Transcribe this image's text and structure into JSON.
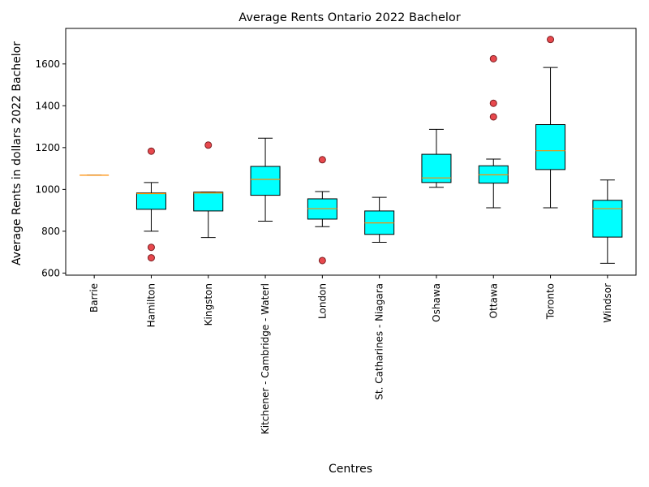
{
  "chart_data": {
    "type": "box",
    "title": "Average Rents Ontario  2022 Bachelor",
    "xlabel": "Centres",
    "ylabel": "Average Rents in dollars 2022 Bachelor",
    "ylim": [
      590,
      1770
    ],
    "yticks": [
      600,
      800,
      1000,
      1200,
      1400,
      1600
    ],
    "grid": false,
    "colors": {
      "box_fill": "#00ffff",
      "median": "#ff8c00",
      "outlier_fill": "#e8484d",
      "outlier_edge": "#7a1f22"
    },
    "categories": [
      "Barrie",
      "Hamilton",
      "Kingston",
      "Kitchener - Cambridge - Waterl",
      "London",
      "St. Catharines - Niagara",
      "Oshawa",
      "Ottawa",
      "Toronto",
      "Windsor"
    ],
    "boxes": [
      {
        "category": "Barrie",
        "whisker_low": 1068,
        "q1": 1068,
        "median": 1068,
        "q3": 1068,
        "whisker_high": 1068,
        "outliers": []
      },
      {
        "category": "Hamilton",
        "whisker_low": 800,
        "q1": 905,
        "median": 980,
        "q3": 983,
        "whisker_high": 1033,
        "outliers": [
          1183,
          723,
          673
        ]
      },
      {
        "category": "Kingston",
        "whisker_low": 770,
        "q1": 897,
        "median": 983,
        "q3": 987,
        "whisker_high": 987,
        "outliers": [
          1212
        ]
      },
      {
        "category": "Kitchener - Cambridge - Waterl",
        "whisker_low": 848,
        "q1": 972,
        "median": 1048,
        "q3": 1110,
        "whisker_high": 1245,
        "outliers": []
      },
      {
        "category": "London",
        "whisker_low": 822,
        "q1": 858,
        "median": 908,
        "q3": 955,
        "whisker_high": 990,
        "outliers": [
          1142,
          660
        ]
      },
      {
        "category": "St. Catharines - Niagara",
        "whisker_low": 747,
        "q1": 785,
        "median": 840,
        "q3": 897,
        "whisker_high": 962,
        "outliers": []
      },
      {
        "category": "Oshawa",
        "whisker_low": 1010,
        "q1": 1033,
        "median": 1055,
        "q3": 1168,
        "whisker_high": 1287,
        "outliers": []
      },
      {
        "category": "Ottawa",
        "whisker_low": 912,
        "q1": 1030,
        "median": 1070,
        "q3": 1113,
        "whisker_high": 1145,
        "outliers": [
          1625,
          1412,
          1347
        ]
      },
      {
        "category": "Toronto",
        "whisker_low": 912,
        "q1": 1095,
        "median": 1185,
        "q3": 1310,
        "whisker_high": 1583,
        "outliers": [
          1717
        ]
      },
      {
        "category": "Windsor",
        "whisker_low": 647,
        "q1": 772,
        "median": 908,
        "q3": 948,
        "whisker_high": 1045,
        "outliers": []
      }
    ]
  }
}
